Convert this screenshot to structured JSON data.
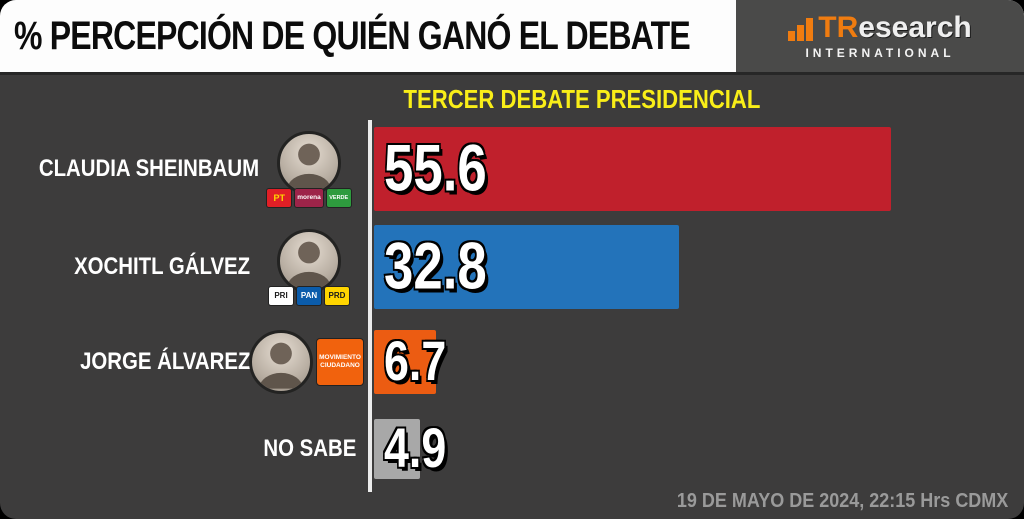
{
  "header": {
    "title": "% PERCEPCIÓN DE QUIÉN GANÓ EL DEBATE",
    "logo": {
      "name_primary": "TR",
      "name_secondary": "esearch",
      "subtitle": "INTERNATIONAL",
      "accent_color": "#f07c10"
    }
  },
  "subtitle": "TERCER DEBATE PRESIDENCIAL",
  "chart_data": {
    "type": "bar",
    "orientation": "horizontal",
    "title": "TERCER DEBATE PRESIDENCIAL",
    "categories": [
      "CLAUDIA SHEINBAUM",
      "XOCHITL GÁLVEZ",
      "JORGE ÁLVAREZ",
      "NO SABE"
    ],
    "values": [
      55.6,
      32.8,
      6.7,
      4.9
    ],
    "value_labels": [
      "55.6",
      "32.8",
      "6.7",
      "4.9"
    ],
    "colors": [
      "#c0202c",
      "#2373ba",
      "#ec5c12",
      "#a8a8a8"
    ],
    "xlim": [
      0,
      60
    ],
    "unit": "%"
  },
  "rows": [
    {
      "label": "CLAUDIA SHEINBAUM",
      "value": "55.6",
      "parties": [
        {
          "name": "PT",
          "bg": "#e01f26",
          "fg": "#ffd800"
        },
        {
          "name": "morena",
          "bg": "#9d2449",
          "fg": "#ffffff"
        },
        {
          "name": "VERDE",
          "bg": "#2e9b3e",
          "fg": "#ffffff"
        }
      ]
    },
    {
      "label": "XOCHITL GÁLVEZ",
      "value": "32.8",
      "parties": [
        {
          "name": "PRI",
          "bg": "#ffffff",
          "fg": "#1a1a1a"
        },
        {
          "name": "PAN",
          "bg": "#0b5cab",
          "fg": "#ffffff"
        },
        {
          "name": "PRD",
          "bg": "#ffd500",
          "fg": "#1a1a1a"
        }
      ]
    },
    {
      "label": "JORGE ÁLVAREZ",
      "value": "6.7",
      "parties": [
        {
          "name": "MOVIMIENTO CIUDADANO",
          "bg": "#f1620d",
          "fg": "#ffffff"
        }
      ]
    },
    {
      "label": "NO SABE",
      "value": "4.9",
      "parties": []
    }
  ],
  "footer": {
    "timestamp": "19 DE MAYO DE 2024, 22:15 Hrs CDMX"
  }
}
